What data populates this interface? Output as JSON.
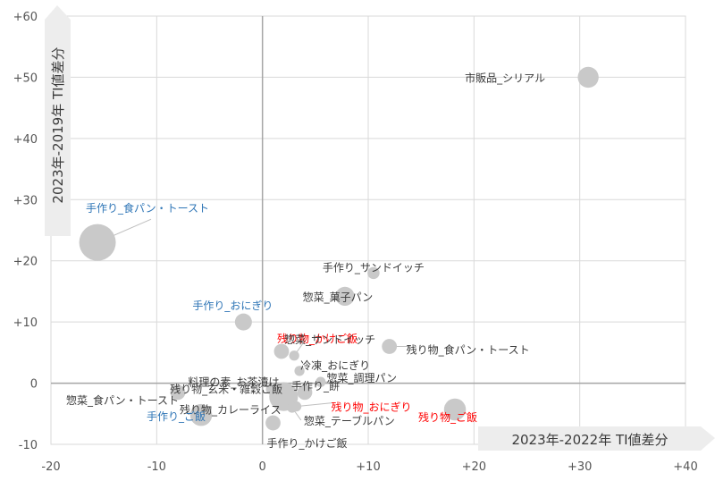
{
  "chart_data": {
    "type": "scatter",
    "title": "",
    "xlabel": "2023年-2022年 TI値差分",
    "ylabel": "2023年-2019年 TI値差分",
    "xlim": [
      -20,
      40
    ],
    "ylim": [
      -10,
      60
    ],
    "x_ticks": [
      {
        "value": -20,
        "label": "-20"
      },
      {
        "value": -10,
        "label": "-10"
      },
      {
        "value": 0,
        "label": "0"
      },
      {
        "value": 10,
        "label": "+10"
      },
      {
        "value": 20,
        "label": "+20"
      },
      {
        "value": 30,
        "label": "+30"
      },
      {
        "value": 40,
        "label": "+40"
      }
    ],
    "y_ticks": [
      {
        "value": -10,
        "label": "-10"
      },
      {
        "value": 0,
        "label": "0"
      },
      {
        "value": 10,
        "label": "+10"
      },
      {
        "value": 20,
        "label": "+20"
      },
      {
        "value": 30,
        "label": "+30"
      },
      {
        "value": 40,
        "label": "+40"
      },
      {
        "value": 50,
        "label": "+50"
      },
      {
        "value": 60,
        "label": "+60"
      }
    ],
    "grid": true,
    "colors": {
      "bubble": "#c9c9c9",
      "grid": "#d9d9d9",
      "axis": "#a6a6a6",
      "black": "#3a3a3a",
      "blue": "#2e75b6",
      "red": "#ff0000",
      "arrow": "#ededed"
    },
    "points": [
      {
        "label": "市販品_シリアル",
        "x": 30.8,
        "y": 50.0,
        "size": 1.4,
        "color": "black"
      },
      {
        "label": "手作り_食パン・トースト",
        "x": -15.6,
        "y": 23.0,
        "size": 3.0,
        "color": "blue"
      },
      {
        "label": "手作り_サンドイッチ",
        "x": 10.5,
        "y": 18.0,
        "size": 0.5,
        "color": "black"
      },
      {
        "label": "惣菜_菓子パン",
        "x": 7.8,
        "y": 14.2,
        "size": 1.2,
        "color": "black"
      },
      {
        "label": "手作り_おにぎり",
        "x": -1.8,
        "y": 10.0,
        "size": 1.0,
        "color": "blue"
      },
      {
        "label": "残り物_かけご飯",
        "x": 1.8,
        "y": 5.2,
        "size": 0.8,
        "color": "red"
      },
      {
        "label": "惣菜_サンドイッチ",
        "x": 3.0,
        "y": 4.5,
        "size": 0.3,
        "color": "black"
      },
      {
        "label": "残り物_食パン・トースト",
        "x": 12.0,
        "y": 6.0,
        "size": 0.8,
        "color": "black"
      },
      {
        "label": "冷凍_おにぎり",
        "x": 3.5,
        "y": 2.0,
        "size": 0.3,
        "color": "black"
      },
      {
        "label": "料理の素_お茶漬け",
        "x": 2.0,
        "y": -2.2,
        "size": 2.2,
        "color": "black"
      },
      {
        "label": "手作り_餅",
        "x": 4.0,
        "y": -1.5,
        "size": 0.8,
        "color": "black"
      },
      {
        "label": "惣菜_調理パン",
        "x": 5.5,
        "y": 0.2,
        "size": 0.3,
        "color": "black"
      },
      {
        "label": "残り物_玄米・雑穀ご飯",
        "x": 0.8,
        "y": -1.0,
        "size": 0.3,
        "color": "black"
      },
      {
        "label": "惣菜_食パン・トースト",
        "x": -8.0,
        "y": -1.5,
        "size": 0.8,
        "color": "black"
      },
      {
        "label": "残り物_カレーライス",
        "x": 1.2,
        "y": -2.0,
        "size": 0.3,
        "color": "black"
      },
      {
        "label": "残り物_おにぎり",
        "x": 3.2,
        "y": -3.8,
        "size": 0.3,
        "color": "red"
      },
      {
        "label": "残り物_ご飯",
        "x": 18.2,
        "y": -4.3,
        "size": 1.5,
        "color": "red"
      },
      {
        "label": "手作り_ご飯",
        "x": -5.8,
        "y": -5.2,
        "size": 1.5,
        "color": "blue"
      },
      {
        "label": "惣菜_テーブルパン",
        "x": 2.8,
        "y": -4.0,
        "size": 0.3,
        "color": "black"
      },
      {
        "label": "手作り_かけご飯",
        "x": 1.0,
        "y": -6.5,
        "size": 0.8,
        "color": "black"
      }
    ]
  }
}
